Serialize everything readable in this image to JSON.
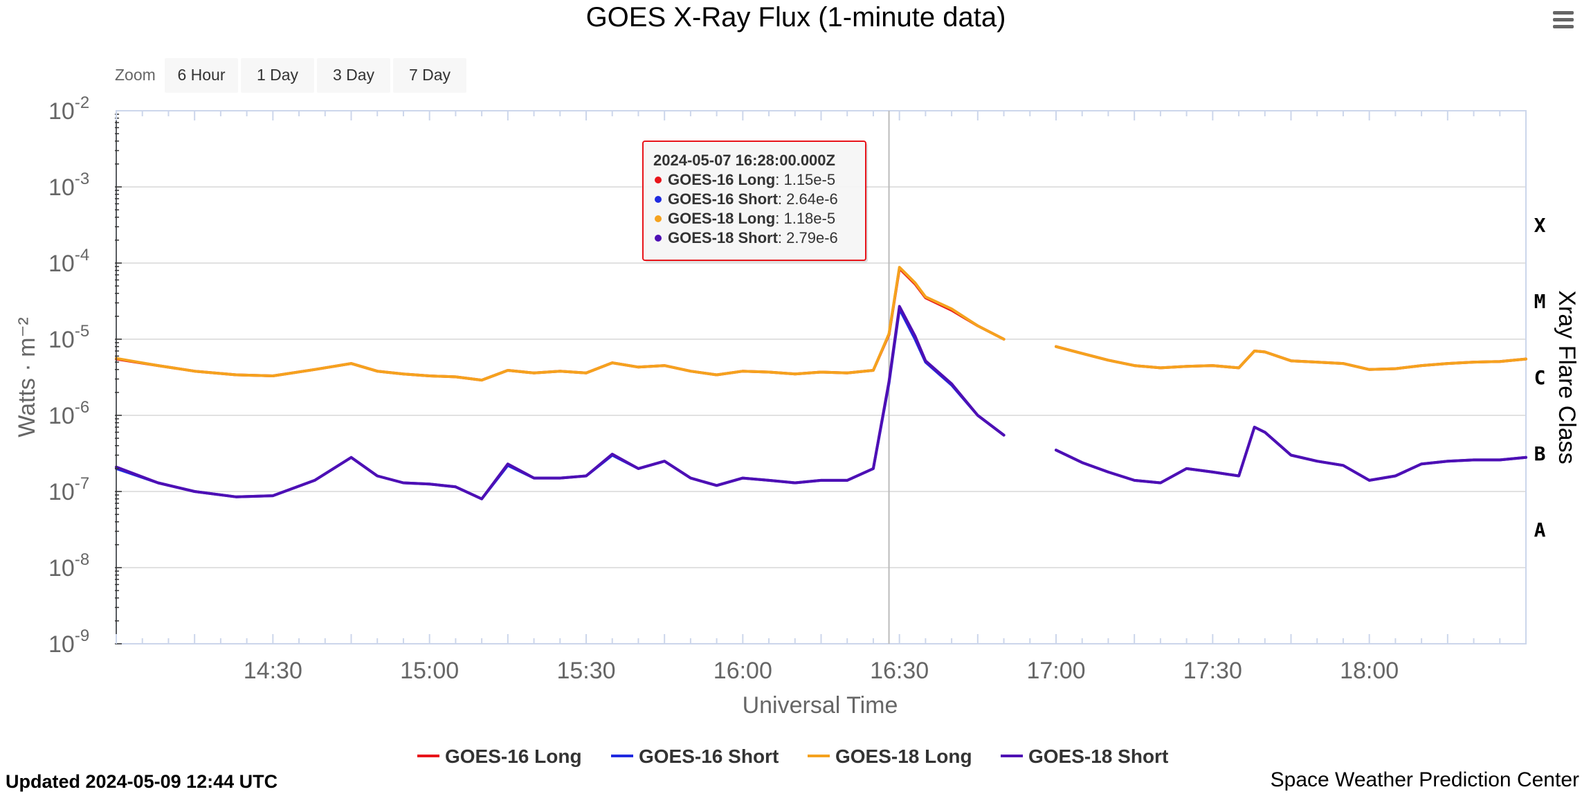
{
  "chart_data": {
    "type": "line",
    "title": "GOES X-Ray Flux (1-minute data)",
    "xlabel": "Universal Time",
    "ylabel": "Watts · m⁻²",
    "y2label": "Xray Flare Class",
    "y_scale": "log",
    "ylim": [
      1e-09,
      0.01
    ],
    "xlim": [
      "2024-05-07 14:00Z",
      "2024-05-07 18:30Z"
    ],
    "x_ticks": [
      "14:30",
      "15:00",
      "15:30",
      "16:00",
      "16:30",
      "17:00",
      "17:30",
      "18:00"
    ],
    "y_ticks": [
      {
        "base": "10",
        "exp": "-2"
      },
      {
        "base": "10",
        "exp": "-3"
      },
      {
        "base": "10",
        "exp": "-4"
      },
      {
        "base": "10",
        "exp": "-5"
      },
      {
        "base": "10",
        "exp": "-6"
      },
      {
        "base": "10",
        "exp": "-7"
      },
      {
        "base": "10",
        "exp": "-8"
      },
      {
        "base": "10",
        "exp": "-9"
      }
    ],
    "flare_classes": [
      "X",
      "M",
      "C",
      "B",
      "A"
    ],
    "grid": true,
    "legend_position": "bottom-center",
    "crosshair_time": "16:28",
    "x_times": [
      "14:00",
      "14:08",
      "14:15",
      "14:23",
      "14:30",
      "14:38",
      "14:45",
      "14:50",
      "14:55",
      "15:00",
      "15:05",
      "15:10",
      "15:15",
      "15:20",
      "15:25",
      "15:30",
      "15:35",
      "15:40",
      "15:45",
      "15:50",
      "15:55",
      "16:00",
      "16:05",
      "16:10",
      "16:15",
      "16:20",
      "16:25",
      "16:28",
      "16:30",
      "16:33",
      "16:35",
      "16:40",
      "16:45",
      "16:50",
      "16:55",
      "17:00",
      "17:05",
      "17:10",
      "17:15",
      "17:20",
      "17:25",
      "17:30",
      "17:35",
      "17:38",
      "17:40",
      "17:45",
      "17:50",
      "17:55",
      "18:00",
      "18:05",
      "18:10",
      "18:15",
      "18:20",
      "18:25",
      "18:30"
    ],
    "series": [
      {
        "name": "GOES-16 Long",
        "color": "#e8141a",
        "values": [
          5.5e-06,
          4.5e-06,
          3.8e-06,
          3.4e-06,
          3.3e-06,
          4e-06,
          4.8e-06,
          3.8e-06,
          3.5e-06,
          3.3e-06,
          3.2e-06,
          2.9e-06,
          3.9e-06,
          3.6e-06,
          3.8e-06,
          3.6e-06,
          4.9e-06,
          4.3e-06,
          4.5e-06,
          3.8e-06,
          3.4e-06,
          3.8e-06,
          3.7e-06,
          3.5e-06,
          3.7e-06,
          3.6e-06,
          3.9e-06,
          1.15e-05,
          8.5e-05,
          5.3e-05,
          3.5e-05,
          2.4e-05,
          1.5e-05,
          1e-05,
          null,
          8e-06,
          6.5e-06,
          5.3e-06,
          4.5e-06,
          4.2e-06,
          4.4e-06,
          4.5e-06,
          4.2e-06,
          7e-06,
          6.8e-06,
          5.2e-06,
          5e-06,
          4.8e-06,
          4e-06,
          4.1e-06,
          4.5e-06,
          4.8e-06,
          5e-06,
          5.1e-06,
          5.5e-06
        ]
      },
      {
        "name": "GOES-16 Short",
        "color": "#1f2ae0",
        "values": [
          2e-07,
          1.3e-07,
          1e-07,
          8.5e-08,
          8.8e-08,
          1.4e-07,
          2.8e-07,
          1.6e-07,
          1.3e-07,
          1.25e-07,
          1.15e-07,
          8e-08,
          2.2e-07,
          1.5e-07,
          1.5e-07,
          1.6e-07,
          3e-07,
          2e-07,
          2.5e-07,
          1.5e-07,
          1.2e-07,
          1.5e-07,
          1.4e-07,
          1.3e-07,
          1.4e-07,
          1.4e-07,
          2e-07,
          2.64e-06,
          2.5e-05,
          1e-05,
          5e-06,
          2.5e-06,
          1e-06,
          5.5e-07,
          null,
          3.5e-07,
          2.4e-07,
          1.8e-07,
          1.4e-07,
          1.3e-07,
          2e-07,
          1.8e-07,
          1.6e-07,
          7e-07,
          6e-07,
          3e-07,
          2.5e-07,
          2.2e-07,
          1.4e-07,
          1.6e-07,
          2.3e-07,
          2.5e-07,
          2.6e-07,
          2.6e-07,
          2.8e-07
        ]
      },
      {
        "name": "GOES-18 Long",
        "color": "#f5a21e",
        "values": [
          5.6e-06,
          4.5e-06,
          3.8e-06,
          3.4e-06,
          3.3e-06,
          4e-06,
          4.8e-06,
          3.8e-06,
          3.5e-06,
          3.3e-06,
          3.2e-06,
          2.9e-06,
          3.9e-06,
          3.6e-06,
          3.8e-06,
          3.6e-06,
          4.9e-06,
          4.3e-06,
          4.5e-06,
          3.8e-06,
          3.4e-06,
          3.8e-06,
          3.7e-06,
          3.5e-06,
          3.7e-06,
          3.6e-06,
          3.9e-06,
          1.18e-05,
          8.8e-05,
          5.5e-05,
          3.6e-05,
          2.5e-05,
          1.5e-05,
          1e-05,
          null,
          8e-06,
          6.5e-06,
          5.3e-06,
          4.5e-06,
          4.2e-06,
          4.4e-06,
          4.5e-06,
          4.2e-06,
          7e-06,
          6.8e-06,
          5.2e-06,
          5e-06,
          4.8e-06,
          4e-06,
          4.1e-06,
          4.5e-06,
          4.8e-06,
          5e-06,
          5.1e-06,
          5.5e-06
        ]
      },
      {
        "name": "GOES-18 Short",
        "color": "#4e0fb4",
        "values": [
          2.1e-07,
          1.3e-07,
          1e-07,
          8.5e-08,
          8.8e-08,
          1.4e-07,
          2.8e-07,
          1.6e-07,
          1.3e-07,
          1.25e-07,
          1.15e-07,
          8e-08,
          2.3e-07,
          1.5e-07,
          1.5e-07,
          1.6e-07,
          3.1e-07,
          2e-07,
          2.5e-07,
          1.5e-07,
          1.2e-07,
          1.5e-07,
          1.4e-07,
          1.3e-07,
          1.4e-07,
          1.4e-07,
          2e-07,
          2.79e-06,
          2.7e-05,
          1.1e-05,
          5.2e-06,
          2.6e-06,
          1e-06,
          5.5e-07,
          null,
          3.5e-07,
          2.4e-07,
          1.8e-07,
          1.4e-07,
          1.3e-07,
          2e-07,
          1.8e-07,
          1.6e-07,
          7e-07,
          6e-07,
          3e-07,
          2.5e-07,
          2.2e-07,
          1.4e-07,
          1.6e-07,
          2.3e-07,
          2.5e-07,
          2.6e-07,
          2.6e-07,
          2.8e-07
        ]
      }
    ],
    "tooltip": {
      "header": "2024-05-07 16:28:00.000Z",
      "rows": [
        {
          "label": "GOES-16 Long",
          "value": ": 1.15e-5",
          "color": "#e8141a"
        },
        {
          "label": "GOES-16 Short",
          "value": ": 2.64e-6",
          "color": "#1f2ae0"
        },
        {
          "label": "GOES-18 Long",
          "value": ": 1.18e-5",
          "color": "#f5a21e"
        },
        {
          "label": "GOES-18 Short",
          "value": ": 2.79e-6",
          "color": "#4e0fb4"
        }
      ]
    }
  },
  "zoom": {
    "label": "Zoom",
    "buttons": [
      "6 Hour",
      "1 Day",
      "3 Day",
      "7 Day"
    ]
  },
  "footer": {
    "updated": "Updated 2024-05-09 12:44 UTC",
    "credit": "Space Weather Prediction Center"
  },
  "menu_icon": "hamburger-menu-icon"
}
